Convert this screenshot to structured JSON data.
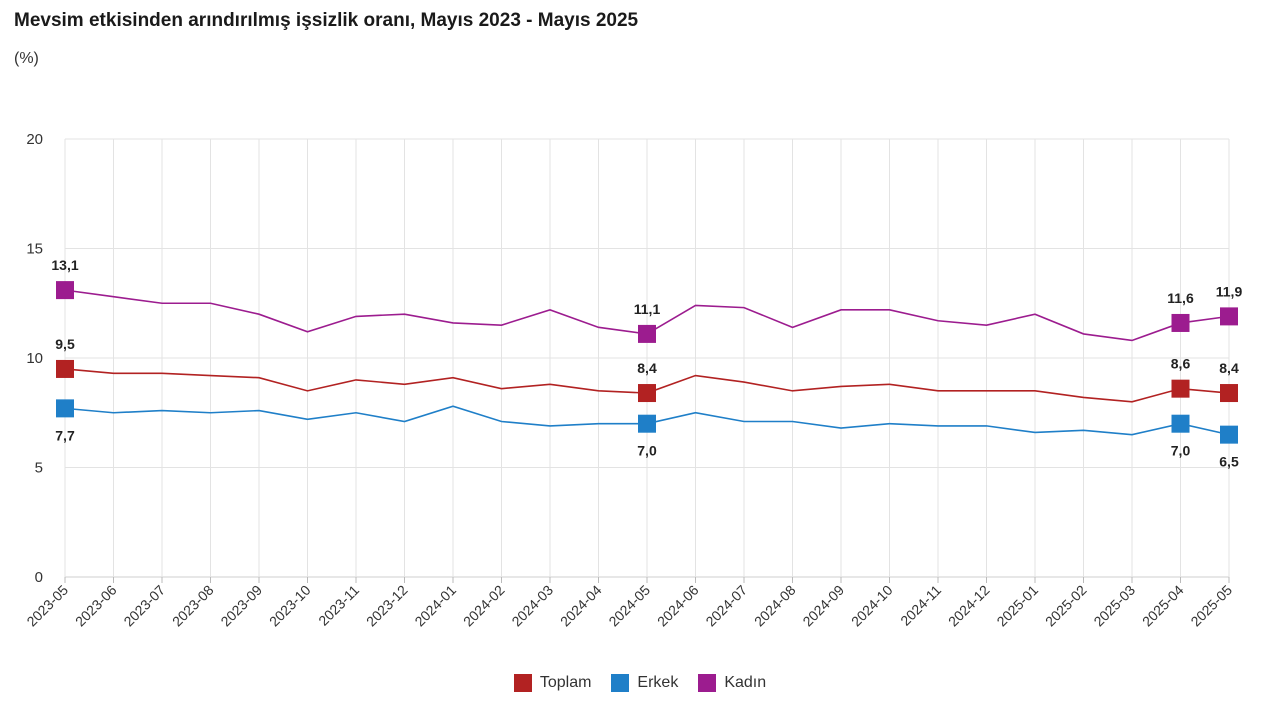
{
  "chart_data": {
    "type": "line",
    "title": "Mevsim etkisinden arındırılmış işsizlik oranı, Mayıs 2023 - Mayıs 2025",
    "unit_label": "(%)",
    "xlabel": "",
    "ylabel": "(%)",
    "ylim": [
      0,
      20
    ],
    "yticks": [
      0,
      5,
      10,
      15,
      20
    ],
    "grid": true,
    "legend_position": "bottom-center",
    "categories": [
      "2023-05",
      "2023-06",
      "2023-07",
      "2023-08",
      "2023-09",
      "2023-10",
      "2023-11",
      "2023-12",
      "2024-01",
      "2024-02",
      "2024-03",
      "2024-04",
      "2024-05",
      "2024-06",
      "2024-07",
      "2024-08",
      "2024-09",
      "2024-10",
      "2024-11",
      "2024-12",
      "2025-01",
      "2025-02",
      "2025-03",
      "2025-04",
      "2025-05"
    ],
    "series": [
      {
        "name": "Toplam",
        "color": "#b22222",
        "values": [
          9.5,
          9.3,
          9.3,
          9.2,
          9.1,
          8.5,
          9.0,
          8.8,
          9.1,
          8.6,
          8.8,
          8.5,
          8.4,
          9.2,
          8.9,
          8.5,
          8.7,
          8.8,
          8.5,
          8.5,
          8.5,
          8.2,
          8.0,
          8.6,
          8.4
        ],
        "labels": [
          {
            "index": 0,
            "text": "9,5",
            "pos": "above"
          },
          {
            "index": 12,
            "text": "8,4",
            "pos": "above"
          },
          {
            "index": 23,
            "text": "8,6",
            "pos": "above"
          },
          {
            "index": 24,
            "text": "8,4",
            "pos": "above"
          }
        ]
      },
      {
        "name": "Erkek",
        "color": "#1f7fc8",
        "values": [
          7.7,
          7.5,
          7.6,
          7.5,
          7.6,
          7.2,
          7.5,
          7.1,
          7.8,
          7.1,
          6.9,
          7.0,
          7.0,
          7.5,
          7.1,
          7.1,
          6.8,
          7.0,
          6.9,
          6.9,
          6.6,
          6.7,
          6.5,
          7.0,
          6.5
        ],
        "labels": [
          {
            "index": 0,
            "text": "7,7",
            "pos": "below"
          },
          {
            "index": 12,
            "text": "7,0",
            "pos": "below"
          },
          {
            "index": 23,
            "text": "7,0",
            "pos": "below"
          },
          {
            "index": 24,
            "text": "6,5",
            "pos": "below"
          }
        ]
      },
      {
        "name": "Kadın",
        "color": "#9c1c8f",
        "values": [
          13.1,
          12.8,
          12.5,
          12.5,
          12.0,
          11.2,
          11.9,
          12.0,
          11.6,
          11.5,
          12.2,
          11.4,
          11.1,
          12.4,
          12.3,
          11.4,
          12.2,
          12.2,
          11.7,
          11.5,
          12.0,
          11.1,
          10.8,
          11.6,
          11.9
        ],
        "labels": [
          {
            "index": 0,
            "text": "13,1",
            "pos": "above"
          },
          {
            "index": 12,
            "text": "11,1",
            "pos": "above"
          },
          {
            "index": 23,
            "text": "11,6",
            "pos": "above"
          },
          {
            "index": 24,
            "text": "11,9",
            "pos": "above"
          }
        ]
      }
    ]
  }
}
